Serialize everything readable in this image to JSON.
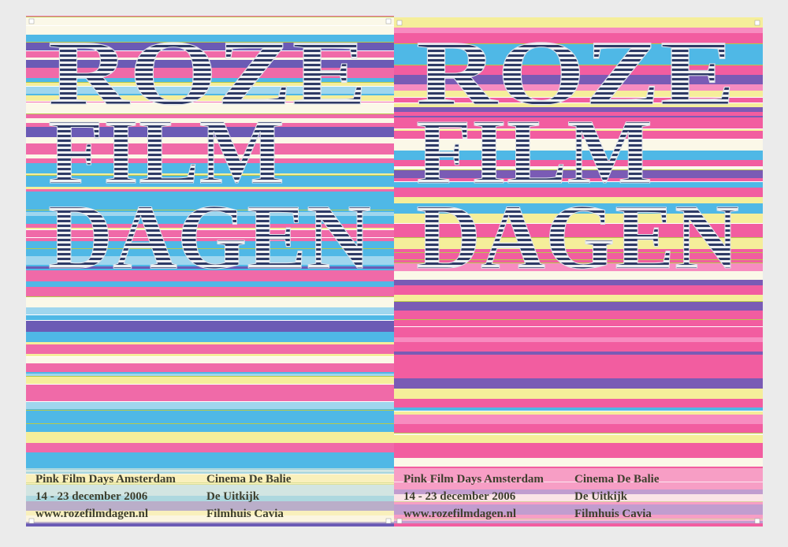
{
  "posters": [
    {
      "title": [
        "ROZE",
        "FILM",
        "DAGEN"
      ],
      "event": "Pink Film Days Amsterdam",
      "dates": "14 - 23 december 2006",
      "website": "www.rozefilmdagen.nl",
      "venues": [
        "Cinema De Balie",
        "De Uitkijk",
        "Filmhuis Cavia"
      ]
    },
    {
      "title": [
        "ROZE",
        "FILM",
        "DAGEN"
      ],
      "event": "Pink Film Days Amsterdam",
      "dates": "14 - 23 december 2006",
      "website": "www.rozefilmdagen.nl",
      "venues": [
        "Cinema De Balie",
        "De Uitkijk",
        "Filmhuis Cavia"
      ]
    }
  ]
}
